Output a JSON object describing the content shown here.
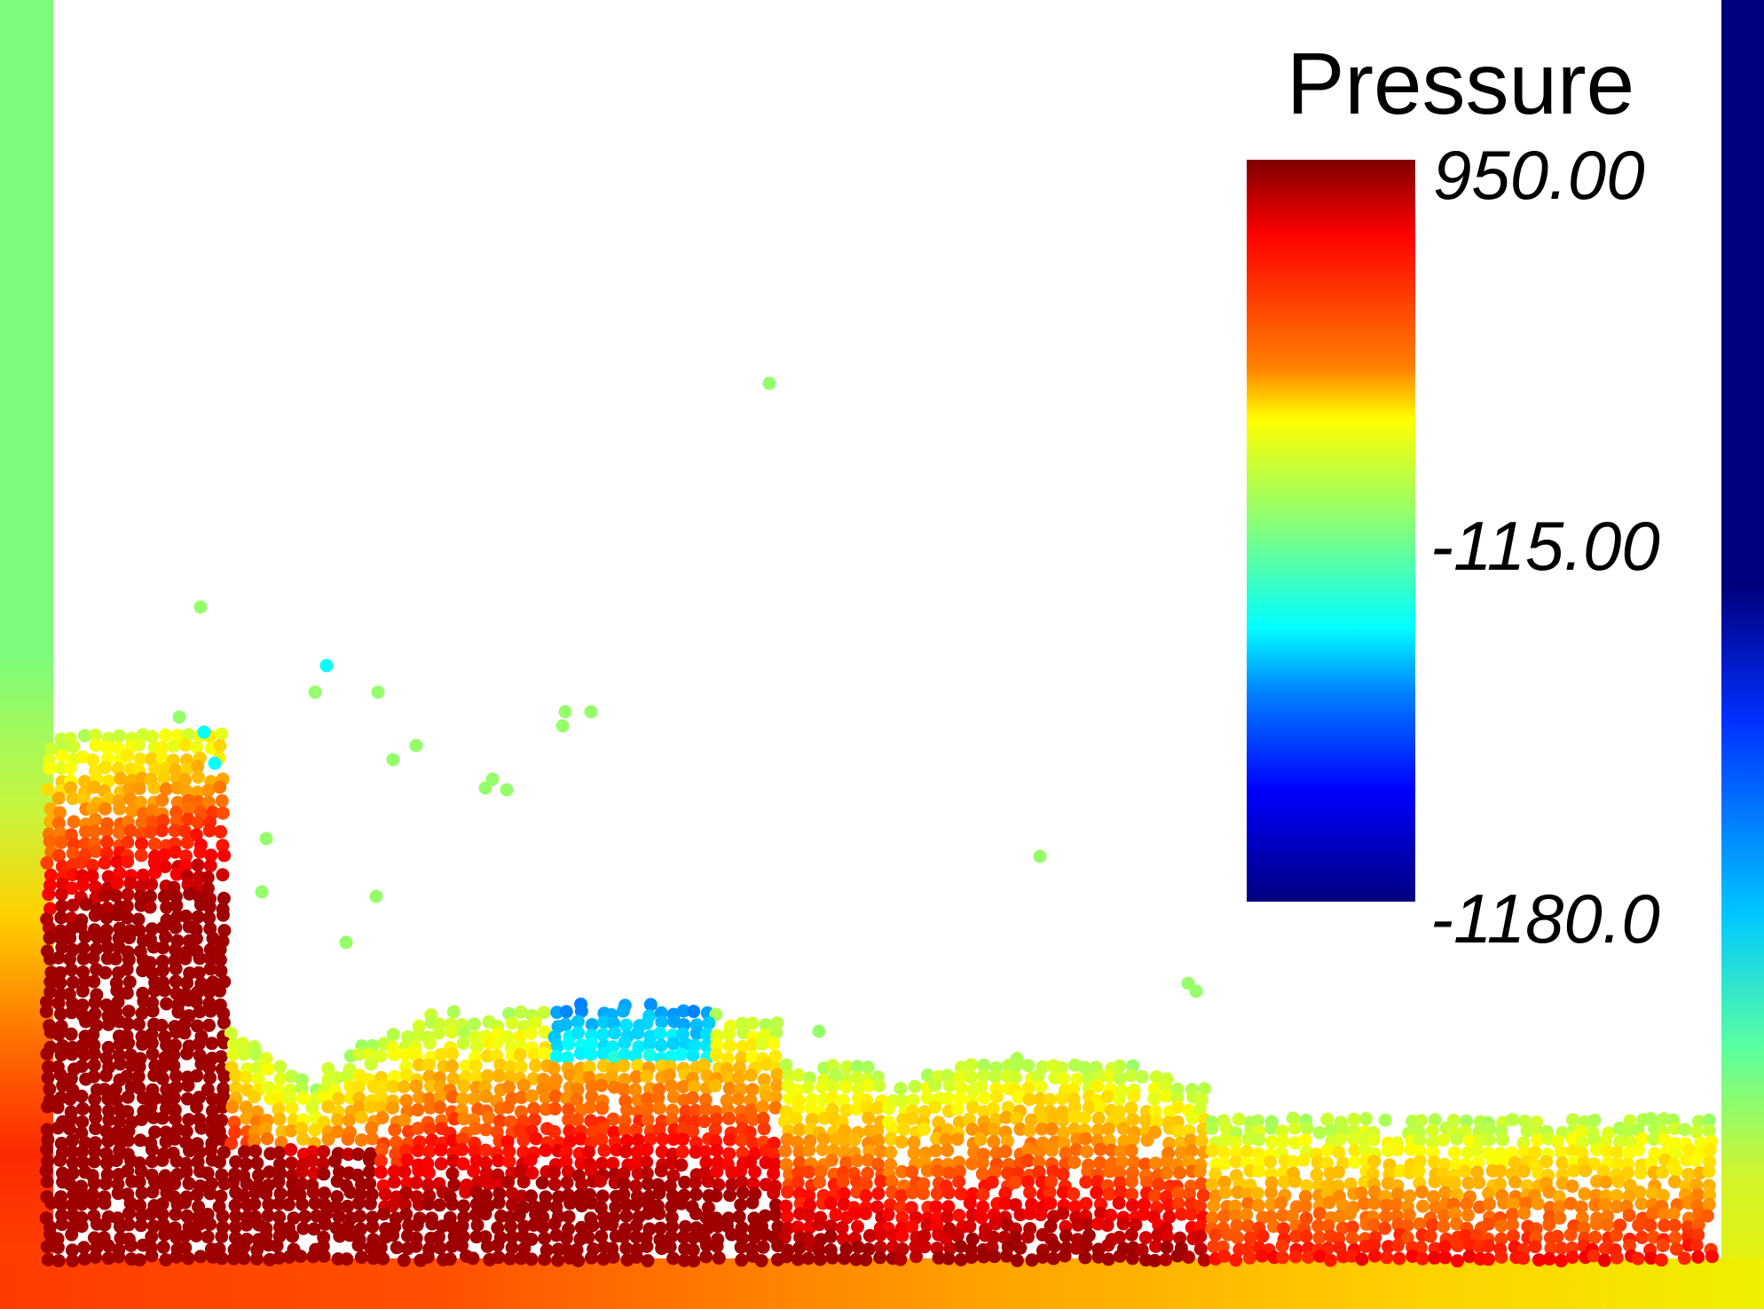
{
  "colorbar": {
    "title": "Pressure",
    "max_label": "950.00",
    "mid_label": "-115.00",
    "min_label": "-1180.0",
    "range": [
      -1180,
      950
    ],
    "colormap": "jet",
    "stops": [
      "#800000",
      "#ff0000",
      "#ff8000",
      "#ffff00",
      "#80ff80",
      "#00ffff",
      "#0080ff",
      "#0000ff",
      "#000080"
    ]
  },
  "scene": {
    "background": "#ffffff",
    "left_wall_top_color": "#7cfc7c",
    "right_wall_top_color": "#00007f"
  }
}
